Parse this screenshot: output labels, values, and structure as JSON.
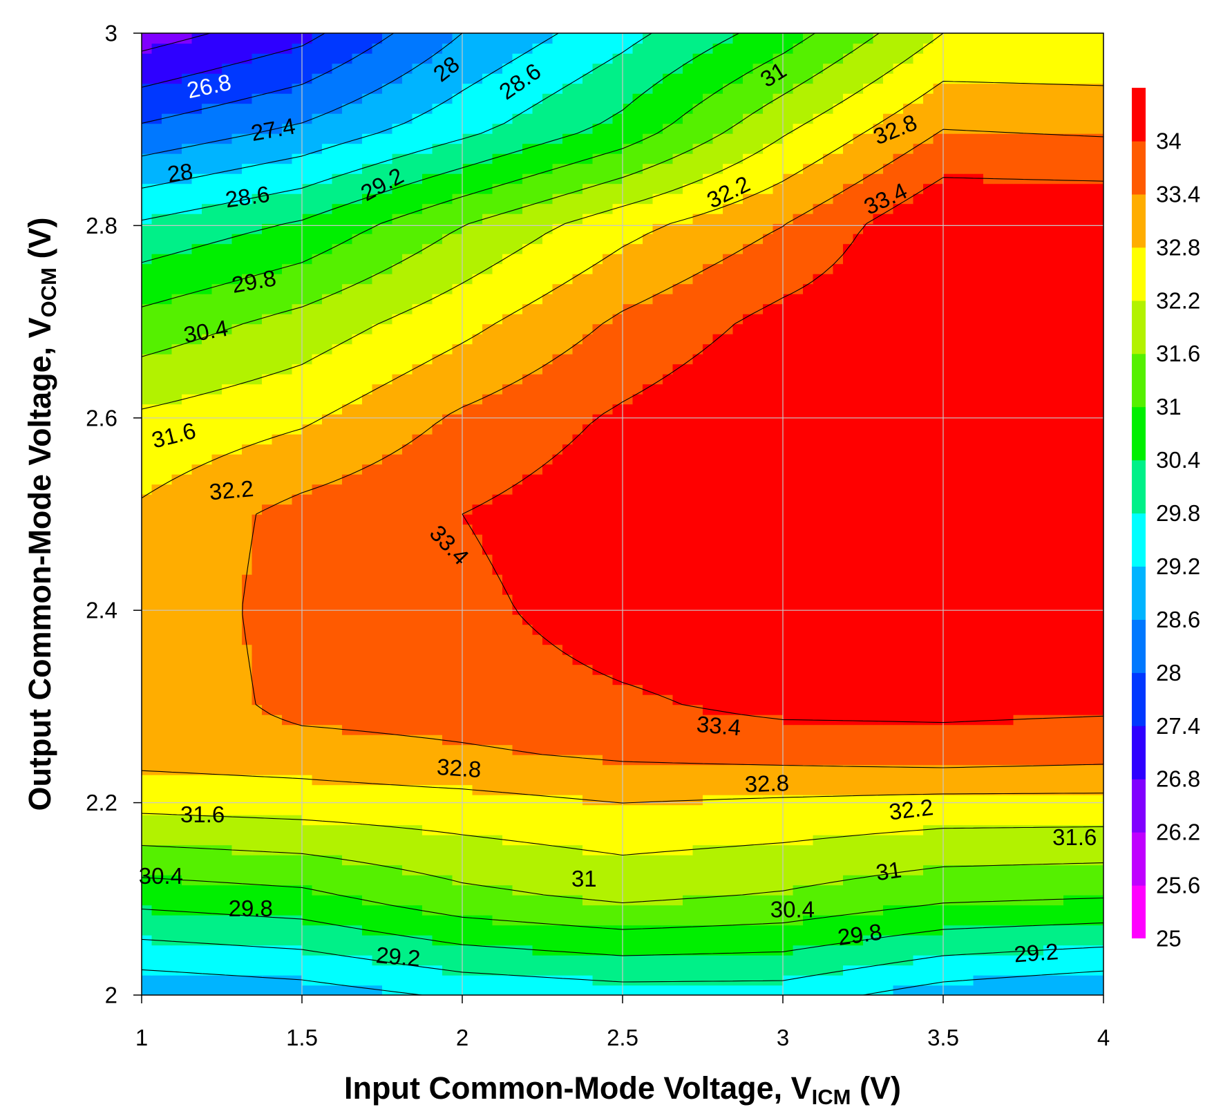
{
  "chart_data": {
    "type": "contour",
    "title": "",
    "x_axis": {
      "title_main": "Input Common-Mode Voltage, V",
      "title_sub": "ICM",
      "title_end": " (V)",
      "range": [
        1,
        4
      ],
      "ticks": [
        "1",
        "1.5",
        "2",
        "2.5",
        "3",
        "3.5",
        "4"
      ]
    },
    "y_axis": {
      "title_main": "Output Common-Mode Voltage, V",
      "title_sub": "OCM",
      "title_end": " (V)",
      "range": [
        2,
        3
      ],
      "ticks": [
        "2",
        "2.2",
        "2.4",
        "2.6",
        "2.8",
        "3"
      ]
    },
    "grid": true,
    "colorbar": {
      "ticks": [
        "25",
        "25.6",
        "26.2",
        "26.8",
        "27.4",
        "28",
        "28.6",
        "29.2",
        "29.8",
        "30.4",
        "31",
        "31.6",
        "32.2",
        "32.8",
        "33.4",
        "34"
      ],
      "colors": [
        "#ff00ff",
        "#bf00ff",
        "#8000ff",
        "#2e00ff",
        "#0038ff",
        "#0078ff",
        "#00b4ff",
        "#00ffff",
        "#00f088",
        "#00ef00",
        "#55f000",
        "#b2f200",
        "#ffff00",
        "#ffad00",
        "#ff5a00",
        "#ff0000"
      ]
    },
    "levels": [
      25,
      25.6,
      26.2,
      26.8,
      27.4,
      28,
      28.6,
      29.2,
      29.8,
      30.4,
      31,
      31.6,
      32.2,
      32.8,
      33.4,
      34
    ],
    "x": [
      1,
      1.5,
      2,
      2.5,
      3,
      3.5,
      4
    ],
    "y": [
      2.0,
      2.1,
      2.2,
      2.25,
      2.3,
      2.4,
      2.5,
      2.6,
      2.7,
      2.8,
      2.9,
      3.0
    ],
    "z": [
      [
        28.1,
        28.3,
        28.7,
        28.9,
        28.9,
        28.3,
        28.0
      ],
      [
        30.0,
        30.2,
        30.8,
        31.1,
        30.9,
        30.5,
        30.4
      ],
      [
        31.8,
        31.9,
        32.0,
        32.2,
        32.1,
        32.0,
        32.0
      ],
      [
        32.4,
        32.5,
        32.7,
        32.9,
        33.0,
        33.1,
        33.0
      ],
      [
        32.3,
        33.0,
        33.1,
        33.3,
        33.55,
        33.55,
        33.5
      ],
      [
        32.3,
        33.1,
        33.25,
        33.7,
        33.8,
        33.9,
        33.9
      ],
      [
        32.3,
        33.0,
        33.4,
        33.8,
        34.0,
        34.0,
        34.0
      ],
      [
        31.7,
        32.1,
        32.9,
        33.5,
        34.0,
        34.0,
        34.0
      ],
      [
        30.6,
        31.2,
        32.0,
        32.9,
        33.6,
        34.0,
        34.0
      ],
      [
        29.3,
        29.9,
        31.0,
        32.0,
        32.8,
        34.0,
        34.0
      ],
      [
        27.5,
        28.1,
        29.0,
        30.0,
        31.5,
        32.8,
        32.7
      ],
      [
        25.9,
        26.6,
        28.0,
        29.0,
        30.1,
        31.6,
        31.6
      ]
    ],
    "contour_labels": [
      {
        "text": "26.8",
        "x": 1.21,
        "y": 2.945,
        "angle": -12,
        "color": "#ffffff"
      },
      {
        "text": "27.4",
        "x": 1.41,
        "y": 2.9,
        "angle": -10,
        "color": "#000000"
      },
      {
        "text": "28",
        "x": 1.12,
        "y": 2.855,
        "angle": -8,
        "color": "#000000"
      },
      {
        "text": "28.6",
        "x": 1.33,
        "y": 2.83,
        "angle": -8,
        "color": "#000000"
      },
      {
        "text": "28",
        "x": 1.95,
        "y": 2.963,
        "angle": -38,
        "color": "#000000"
      },
      {
        "text": "28.6",
        "x": 2.18,
        "y": 2.95,
        "angle": -35,
        "color": "#000000"
      },
      {
        "text": "29.2",
        "x": 1.75,
        "y": 2.843,
        "angle": -28,
        "color": "#000000"
      },
      {
        "text": "29.8",
        "x": 1.35,
        "y": 2.742,
        "angle": -10,
        "color": "#000000"
      },
      {
        "text": "30.4",
        "x": 1.2,
        "y": 2.69,
        "angle": -10,
        "color": "#000000"
      },
      {
        "text": "31",
        "x": 2.97,
        "y": 2.957,
        "angle": -32,
        "color": "#000000"
      },
      {
        "text": "31.6",
        "x": 1.1,
        "y": 2.582,
        "angle": -14,
        "color": "#000000"
      },
      {
        "text": "32.2",
        "x": 1.28,
        "y": 2.525,
        "angle": -5,
        "color": "#000000"
      },
      {
        "text": "32.2",
        "x": 2.83,
        "y": 2.835,
        "angle": -26,
        "color": "#000000"
      },
      {
        "text": "32.8",
        "x": 3.35,
        "y": 2.9,
        "angle": -22,
        "color": "#000000"
      },
      {
        "text": "33.4",
        "x": 3.32,
        "y": 2.828,
        "angle": -25,
        "color": "#000000"
      },
      {
        "text": "33.4",
        "x": 1.96,
        "y": 2.468,
        "angle": 46,
        "color": "#000000"
      },
      {
        "text": "33.4",
        "x": 2.8,
        "y": 2.28,
        "angle": 5,
        "color": "#000000"
      },
      {
        "text": "32.8",
        "x": 1.99,
        "y": 2.236,
        "angle": 4,
        "color": "#000000"
      },
      {
        "text": "32.8",
        "x": 2.95,
        "y": 2.22,
        "angle": -2,
        "color": "#000000"
      },
      {
        "text": "32.2",
        "x": 3.4,
        "y": 2.193,
        "angle": -7,
        "color": "#000000"
      },
      {
        "text": "31.6",
        "x": 1.19,
        "y": 2.188,
        "angle": 0,
        "color": "#000000"
      },
      {
        "text": "31.6",
        "x": 3.91,
        "y": 2.164,
        "angle": 0,
        "color": "#000000"
      },
      {
        "text": "30.4",
        "x": 1.06,
        "y": 2.124,
        "angle": 0,
        "color": "#000000"
      },
      {
        "text": "31",
        "x": 2.38,
        "y": 2.121,
        "angle": 0,
        "color": "#000000"
      },
      {
        "text": "31",
        "x": 3.33,
        "y": 2.129,
        "angle": -8,
        "color": "#000000"
      },
      {
        "text": "29.8",
        "x": 1.34,
        "y": 2.09,
        "angle": 0,
        "color": "#000000"
      },
      {
        "text": "30.4",
        "x": 3.03,
        "y": 2.089,
        "angle": 0,
        "color": "#000000"
      },
      {
        "text": "29.8",
        "x": 3.24,
        "y": 2.063,
        "angle": -8,
        "color": "#000000"
      },
      {
        "text": "29.2",
        "x": 1.8,
        "y": 2.04,
        "angle": 5,
        "color": "#000000"
      },
      {
        "text": "29.2",
        "x": 3.79,
        "y": 2.044,
        "angle": -4,
        "color": "#000000"
      }
    ]
  }
}
